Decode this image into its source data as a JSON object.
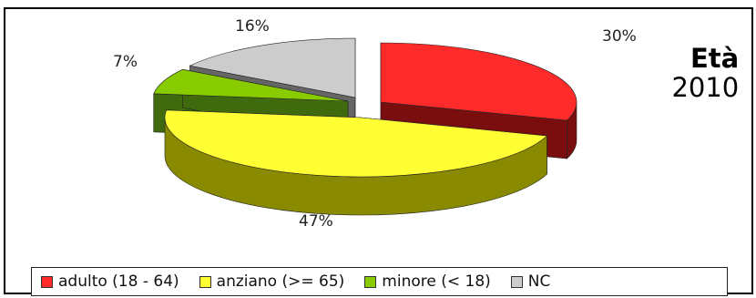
{
  "side_title": {
    "label": "Età",
    "year": "2010"
  },
  "chart_data": {
    "type": "pie",
    "title": "Età 2010",
    "style": "3d-exploded",
    "legend_position": "bottom",
    "categories": [
      "adulto (18 - 64)",
      "anziano (>= 65)",
      "minore (< 18)",
      "NC"
    ],
    "values": [
      30,
      47,
      7,
      16
    ],
    "labels": [
      "30%",
      "47%",
      "7%",
      "16%"
    ],
    "colors": [
      "#ff2a2a",
      "#ffff33",
      "#88cc00",
      "#cccccc"
    ],
    "side_colors": [
      "#7a0e0e",
      "#8a8a00",
      "#3f6a0e",
      "#666666"
    ]
  }
}
